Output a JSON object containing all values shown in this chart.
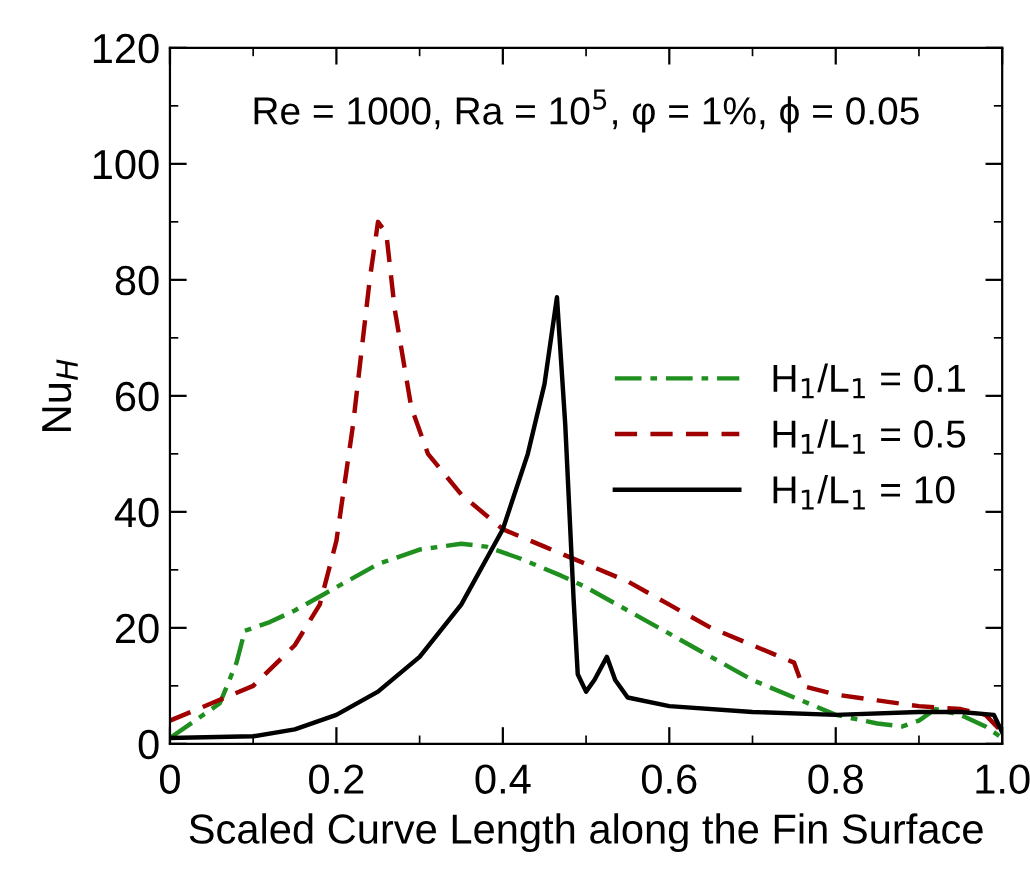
{
  "chart_data": {
    "type": "line",
    "xlabel": "Scaled Curve Length along the Fin Surface",
    "ylabel": "Nu$_{H}$",
    "annotations": [
      "Re = 1000, Ra = 10$^{5}$, φ = 1%, ϕ = 0.05"
    ],
    "xlim": [
      0,
      1
    ],
    "ylim": [
      0,
      120
    ],
    "xticks": [
      0,
      0.2,
      0.4,
      0.6,
      0.8,
      {
        "value": 1,
        "label": "1.0"
      }
    ],
    "yticks": [
      0,
      20,
      40,
      60,
      80,
      100,
      120
    ],
    "grid": false,
    "legend": "right",
    "marker": "none",
    "series": [
      {
        "name": "H$_{1}$/L$_{1}$ = 0.1",
        "color": "#1f8f1f",
        "line_style": "dashdot",
        "x": [
          0,
          0.03,
          0.06,
          0.08,
          0.09,
          0.12,
          0.15,
          0.2,
          0.25,
          0.3,
          0.35,
          0.38,
          0.42,
          0.47,
          0.5,
          0.55,
          0.6,
          0.65,
          0.7,
          0.75,
          0.8,
          0.85,
          0.88,
          0.9,
          0.92,
          0.95,
          0.98,
          1.0
        ],
        "values": [
          1,
          4,
          7,
          14,
          19.5,
          21,
          23,
          27,
          31,
          33.5,
          34.5,
          34,
          32,
          29,
          27,
          23,
          19,
          15,
          11,
          8,
          5,
          3.5,
          3,
          4,
          6,
          5,
          3,
          1
        ]
      },
      {
        "name": "H$_{1}$/L$_{1}$ = 0.5",
        "color": "#a00000",
        "line_style": "dashed",
        "x": [
          0,
          0.05,
          0.1,
          0.15,
          0.18,
          0.2,
          0.22,
          0.24,
          0.25,
          0.26,
          0.27,
          0.29,
          0.31,
          0.35,
          0.4,
          0.45,
          0.5,
          0.55,
          0.6,
          0.65,
          0.7,
          0.75,
          0.76,
          0.8,
          0.85,
          0.9,
          0.95,
          0.98,
          1.0
        ],
        "values": [
          4,
          7,
          10,
          17,
          24,
          35,
          55,
          80,
          90,
          88,
          75,
          58,
          50,
          43,
          37,
          34,
          31,
          28,
          24,
          20,
          17,
          14,
          10,
          8.5,
          7.5,
          6.5,
          6,
          5,
          2
        ]
      },
      {
        "name": "H$_{1}$/L$_{1}$ = 10",
        "color": "#000000",
        "line_style": "solid",
        "x": [
          0,
          0.1,
          0.15,
          0.2,
          0.25,
          0.3,
          0.35,
          0.4,
          0.43,
          0.45,
          0.465,
          0.475,
          0.485,
          0.49,
          0.5,
          0.51,
          0.525,
          0.535,
          0.55,
          0.6,
          0.7,
          0.8,
          0.9,
          0.95,
          0.99,
          1.0
        ],
        "values": [
          1,
          1.3,
          2.5,
          5,
          9,
          15,
          24,
          37,
          50,
          62,
          77,
          55,
          25,
          12,
          9,
          11,
          15,
          11,
          8,
          6.5,
          5.5,
          5,
          5.5,
          5.5,
          5,
          2
        ]
      }
    ]
  }
}
